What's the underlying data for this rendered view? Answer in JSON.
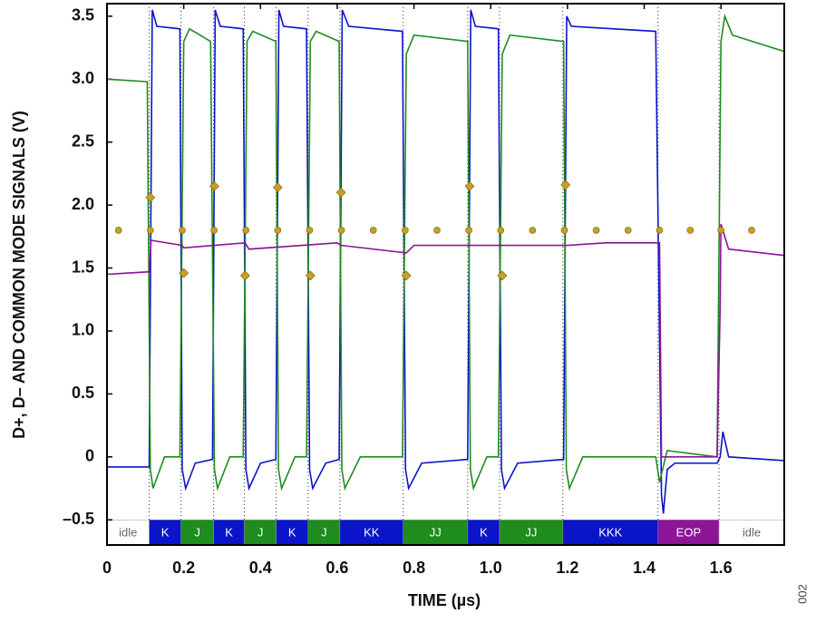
{
  "chart_data": {
    "type": "line",
    "y_label": "D+, D– AND COMMON MODE SIGNALS (V)",
    "x_label": "TIME (µs)",
    "figure_id": "002",
    "xlim": [
      0,
      1.765
    ],
    "ylim": [
      -0.7,
      3.6
    ],
    "xticks": [
      0,
      0.2,
      0.4,
      0.6,
      0.8,
      {
        "value": 1,
        "label": "1.0"
      },
      1.2,
      1.4,
      1.6
    ],
    "yticks": [
      {
        "value": -0.5,
        "label": "–0.5"
      },
      0,
      0.5,
      {
        "value": 1,
        "label": "1.0"
      },
      1.5,
      {
        "value": 2,
        "label": "2.0"
      },
      2.5,
      {
        "value": 3,
        "label": "3.0"
      },
      3.5
    ],
    "series": [
      {
        "color": "#0a14c8",
        "x": [
          0,
          0.11,
          0.118,
          0.13,
          0.19,
          0.196,
          0.205,
          0.23,
          0.275,
          0.282,
          0.295,
          0.355,
          0.362,
          0.37,
          0.4,
          0.44,
          0.448,
          0.46,
          0.52,
          0.528,
          0.536,
          0.57,
          0.605,
          0.613,
          0.63,
          0.77,
          0.778,
          0.786,
          0.82,
          0.94,
          0.948,
          0.96,
          1.02,
          1.028,
          1.036,
          1.07,
          1.19,
          1.198,
          1.21,
          1.43,
          1.445,
          1.45,
          1.46,
          1.48,
          1.59,
          1.598,
          1.605,
          1.62,
          1.765
        ],
        "values": [
          -0.08,
          -0.08,
          3.55,
          3.42,
          3.4,
          -0.1,
          -0.25,
          -0.05,
          -0.02,
          3.55,
          3.42,
          3.4,
          -0.1,
          -0.25,
          -0.05,
          -0.02,
          3.55,
          3.42,
          3.4,
          -0.1,
          -0.25,
          -0.05,
          -0.02,
          3.55,
          3.42,
          3.38,
          -0.1,
          -0.25,
          -0.05,
          -0.02,
          3.55,
          3.42,
          3.4,
          -0.1,
          -0.25,
          -0.05,
          -0.02,
          3.5,
          3.42,
          3.38,
          -0.3,
          -0.45,
          -0.1,
          -0.05,
          -0.05,
          0,
          0.2,
          0,
          -0.03
        ]
      },
      {
        "color": "#1e8c1e",
        "x": [
          0,
          0.105,
          0.113,
          0.12,
          0.15,
          0.19,
          0.2,
          0.215,
          0.27,
          0.28,
          0.288,
          0.32,
          0.355,
          0.365,
          0.38,
          0.44,
          0.447,
          0.455,
          0.49,
          0.52,
          0.53,
          0.545,
          0.605,
          0.612,
          0.62,
          0.66,
          0.77,
          0.78,
          0.8,
          0.94,
          0.947,
          0.955,
          0.99,
          1.02,
          1.03,
          1.05,
          1.19,
          1.197,
          1.205,
          1.24,
          1.43,
          1.44,
          1.46,
          1.59,
          1.6,
          1.61,
          1.63,
          1.765
        ],
        "values": [
          3.0,
          2.98,
          -0.1,
          -0.25,
          0,
          0,
          3.3,
          3.4,
          3.3,
          -0.1,
          -0.25,
          0,
          0,
          3.3,
          3.38,
          3.3,
          -0.1,
          -0.25,
          0,
          0,
          3.3,
          3.38,
          3.3,
          -0.1,
          -0.25,
          0,
          0,
          3.2,
          3.35,
          3.3,
          -0.1,
          -0.25,
          0,
          0,
          3.2,
          3.35,
          3.3,
          -0.1,
          -0.25,
          0,
          0,
          -0.2,
          0.05,
          0,
          3.3,
          3.5,
          3.35,
          3.22
        ]
      },
      {
        "color": "#8c1496",
        "x": [
          0,
          0.11,
          0.115,
          0.196,
          0.2,
          0.36,
          0.37,
          0.6,
          0.61,
          0.78,
          0.8,
          1.2,
          1.3,
          1.44,
          1.445,
          1.59,
          1.598,
          1.6,
          1.62,
          1.765
        ],
        "values": [
          1.45,
          1.47,
          1.72,
          1.68,
          1.66,
          1.7,
          1.65,
          1.7,
          1.68,
          1.62,
          1.68,
          1.68,
          1.7,
          1.7,
          0,
          0,
          1.2,
          1.85,
          1.65,
          1.6
        ]
      }
    ],
    "markers": [
      {
        "shape": "diamond",
        "color": "#c8a020",
        "x": [
          0.113,
          0.2,
          0.28,
          0.36,
          0.445,
          0.53,
          0.61,
          0.78,
          0.945,
          1.03,
          1.195
        ],
        "values": [
          2.06,
          1.46,
          2.15,
          1.44,
          2.14,
          1.44,
          2.1,
          1.44,
          2.15,
          1.44,
          2.16
        ]
      },
      {
        "shape": "circle",
        "color": "#c8a020",
        "x": [
          0.03,
          0.113,
          0.196,
          0.279,
          0.362,
          0.445,
          0.528,
          0.611,
          0.694,
          0.777,
          0.86,
          0.943,
          1.026,
          1.109,
          1.192,
          1.275,
          1.358,
          1.44,
          1.52,
          1.6,
          1.68
        ],
        "values": [
          1.8,
          1.8,
          1.8,
          1.8,
          1.8,
          1.8,
          1.8,
          1.8,
          1.8,
          1.8,
          1.8,
          1.8,
          1.8,
          1.8,
          1.8,
          1.8,
          1.8,
          1.8,
          1.8,
          1.8,
          1.8
        ]
      }
    ],
    "segments": [
      {
        "label": "idle",
        "start": 0,
        "end": 0.11,
        "color": "#ffffff",
        "text_color": "#666666"
      },
      {
        "label": "K",
        "start": 0.11,
        "end": 0.193,
        "color": "#0a14c8",
        "text_color": "#ffffff"
      },
      {
        "label": "J",
        "start": 0.193,
        "end": 0.278,
        "color": "#1e8c1e",
        "text_color": "#ffffff"
      },
      {
        "label": "K",
        "start": 0.278,
        "end": 0.358,
        "color": "#0a14c8",
        "text_color": "#ffffff"
      },
      {
        "label": "J",
        "start": 0.358,
        "end": 0.441,
        "color": "#1e8c1e",
        "text_color": "#ffffff"
      },
      {
        "label": "K",
        "start": 0.441,
        "end": 0.524,
        "color": "#0a14c8",
        "text_color": "#ffffff"
      },
      {
        "label": "J",
        "start": 0.524,
        "end": 0.607,
        "color": "#1e8c1e",
        "text_color": "#ffffff"
      },
      {
        "label": "KK",
        "start": 0.607,
        "end": 0.772,
        "color": "#0a14c8",
        "text_color": "#ffffff"
      },
      {
        "label": "JJ",
        "start": 0.772,
        "end": 0.94,
        "color": "#1e8c1e",
        "text_color": "#ffffff"
      },
      {
        "label": "K",
        "start": 0.94,
        "end": 1.023,
        "color": "#0a14c8",
        "text_color": "#ffffff"
      },
      {
        "label": "JJ",
        "start": 1.023,
        "end": 1.188,
        "color": "#1e8c1e",
        "text_color": "#ffffff"
      },
      {
        "label": "KKK",
        "start": 1.188,
        "end": 1.436,
        "color": "#0a14c8",
        "text_color": "#ffffff"
      },
      {
        "label": "EOP",
        "start": 1.436,
        "end": 1.595,
        "color": "#8c1496",
        "text_color": "#ffffff"
      },
      {
        "label": "idle",
        "start": 1.595,
        "end": 1.765,
        "color": "#ffffff",
        "text_color": "#666666"
      }
    ],
    "segment_band": [
      -0.5,
      -0.7
    ]
  }
}
